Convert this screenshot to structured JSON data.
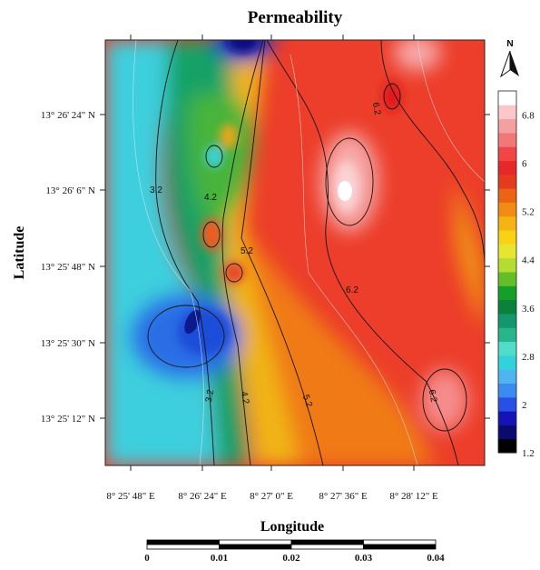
{
  "map": {
    "title": "Permeability",
    "xlabel": "Longitude",
    "ylabel": "Latitude",
    "x_ticks": [
      "8° 25' 48\" E",
      "8° 26' 24\" E",
      "8° 27' 0\" E",
      "8° 27' 36\" E",
      "8° 28' 12\" E"
    ],
    "y_ticks": [
      "13° 26' 24\" N",
      "13° 26' 6\" N",
      "13° 25' 48\" N",
      "13° 25' 30\" N",
      "13° 25' 12\" N"
    ],
    "contour_labels": [
      "3.2",
      "4.2",
      "5.2",
      "6.2",
      "6.2",
      "3.2",
      "4.2",
      "5.2",
      "6.2"
    ],
    "north_arrow": "N",
    "colorbar": {
      "min": 1.2,
      "max": 7.2,
      "tick_labels": [
        "6.8",
        "6",
        "5.2",
        "4.4",
        "3.6",
        "2.8",
        "2",
        "1.2"
      ],
      "colors": [
        "#000000",
        "#0b0b6e",
        "#1414b4",
        "#2850e6",
        "#3c8cf0",
        "#50b4f0",
        "#32d2dc",
        "#50dcc8",
        "#28b48c",
        "#14966e",
        "#0a823c",
        "#14a028",
        "#64be28",
        "#b4dc32",
        "#e6e632",
        "#fad214",
        "#f5b414",
        "#f08c14",
        "#eb6414",
        "#e63c1e",
        "#e62828",
        "#f04646",
        "#f07878",
        "#f5a0a0",
        "#fac8c8",
        "#ffffff"
      ]
    },
    "scale_bar": {
      "labels": [
        "0",
        "0.01",
        "0.02",
        "0.03",
        "0.04"
      ]
    }
  }
}
